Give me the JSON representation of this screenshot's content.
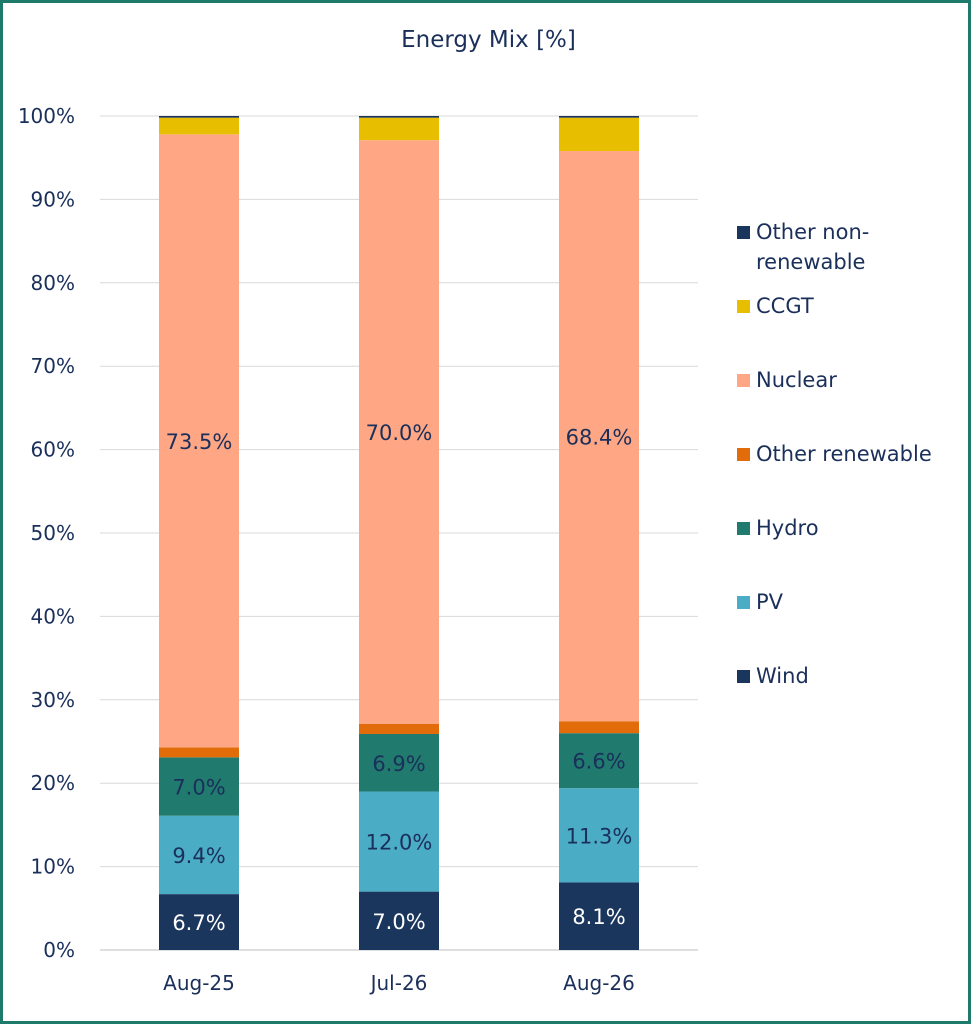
{
  "chart_data": {
    "type": "bar",
    "stacked": true,
    "title": "Energy Mix [%]",
    "xlabel": "",
    "ylabel": "",
    "ylim": [
      0,
      100
    ],
    "y_ticks": [
      "0%",
      "10%",
      "20%",
      "30%",
      "40%",
      "50%",
      "60%",
      "70%",
      "80%",
      "90%",
      "100%"
    ],
    "categories": [
      "Aug-25",
      "Jul-26",
      "Aug-26"
    ],
    "grid": true,
    "legend_position": "right",
    "series": [
      {
        "name": "Wind",
        "color": "#1b365d",
        "values": [
          6.7,
          7.0,
          8.1
        ],
        "labels": [
          "6.7%",
          "7.0%",
          "8.1%"
        ],
        "label_color": "#ffffff"
      },
      {
        "name": "PV",
        "color": "#4bacc6",
        "values": [
          9.4,
          12.0,
          11.3
        ],
        "labels": [
          "9.4%",
          "12.0%",
          "11.3%"
        ],
        "label_color": "#1a2f5a"
      },
      {
        "name": "Hydro",
        "color": "#217a6e",
        "values": [
          7.0,
          6.9,
          6.6
        ],
        "labels": [
          "7.0%",
          "6.9%",
          "6.6%"
        ],
        "label_color": "#1a2f5a"
      },
      {
        "name": "Other renewable",
        "color": "#e36c0a",
        "values": [
          1.2,
          1.2,
          1.4
        ],
        "labels": null
      },
      {
        "name": "Nuclear",
        "color": "#ffa685",
        "values": [
          73.5,
          70.0,
          68.4
        ],
        "labels": [
          "73.5%",
          "70.0%",
          "68.4%"
        ],
        "label_color": "#1a2f5a"
      },
      {
        "name": "CCGT",
        "color": "#e8be00",
        "values": [
          2.0,
          2.7,
          4.0
        ],
        "labels": null
      },
      {
        "name": "Other non-renewable",
        "color": "#1b365d",
        "values": [
          0.2,
          0.2,
          0.2
        ],
        "labels": null
      }
    ],
    "legend_order": [
      "Other non-renewable",
      "CCGT",
      "Nuclear",
      "Other renewable",
      "Hydro",
      "PV",
      "Wind"
    ]
  }
}
